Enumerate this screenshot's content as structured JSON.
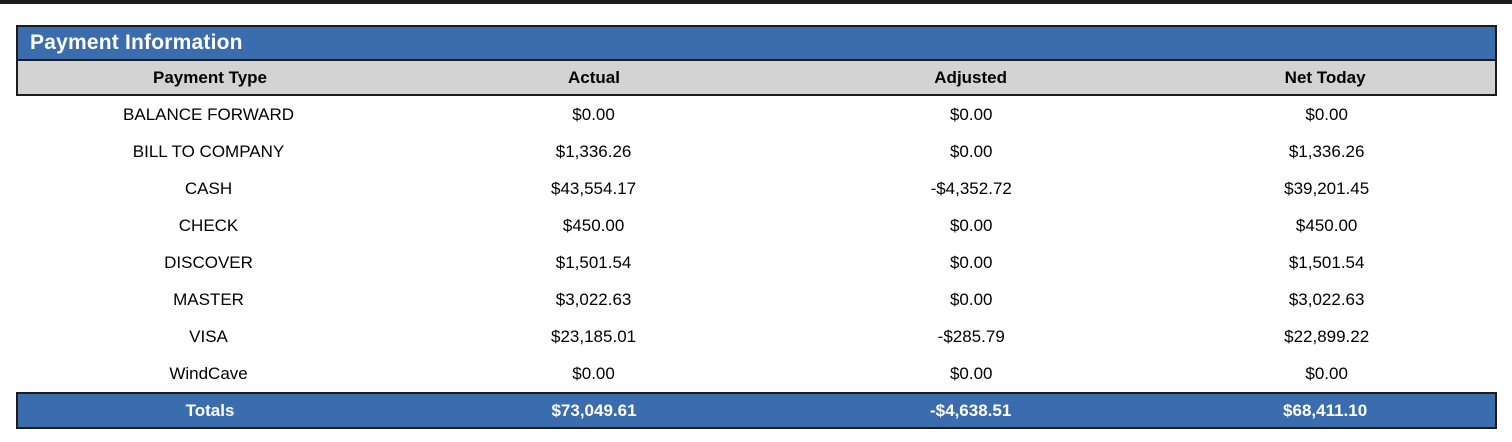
{
  "title": "Payment Information",
  "columns": [
    "Payment Type",
    "Actual",
    "Adjusted",
    "Net Today"
  ],
  "rows": [
    {
      "type": "BALANCE FORWARD",
      "actual": "$0.00",
      "adjusted": "$0.00",
      "net": "$0.00"
    },
    {
      "type": "BILL TO COMPANY",
      "actual": "$1,336.26",
      "adjusted": "$0.00",
      "net": "$1,336.26"
    },
    {
      "type": "CASH",
      "actual": "$43,554.17",
      "adjusted": "-$4,352.72",
      "net": "$39,201.45"
    },
    {
      "type": "CHECK",
      "actual": "$450.00",
      "adjusted": "$0.00",
      "net": "$450.00"
    },
    {
      "type": "DISCOVER",
      "actual": "$1,501.54",
      "adjusted": "$0.00",
      "net": "$1,501.54"
    },
    {
      "type": "MASTER",
      "actual": "$3,022.63",
      "adjusted": "$0.00",
      "net": "$3,022.63"
    },
    {
      "type": "VISA",
      "actual": "$23,185.01",
      "adjusted": "-$285.79",
      "net": "$22,899.22"
    },
    {
      "type": "WindCave",
      "actual": "$0.00",
      "adjusted": "$0.00",
      "net": "$0.00"
    }
  ],
  "totals": {
    "label": "Totals",
    "actual": "$73,049.61",
    "adjusted": "-$4,638.51",
    "net": "$68,411.10"
  },
  "colors": {
    "accent": "#3A6CAE",
    "header-bg": "#D3D3D3",
    "border": "#1C1C1C",
    "text-on-accent": "#FFFFFF",
    "text": "#000000"
  }
}
